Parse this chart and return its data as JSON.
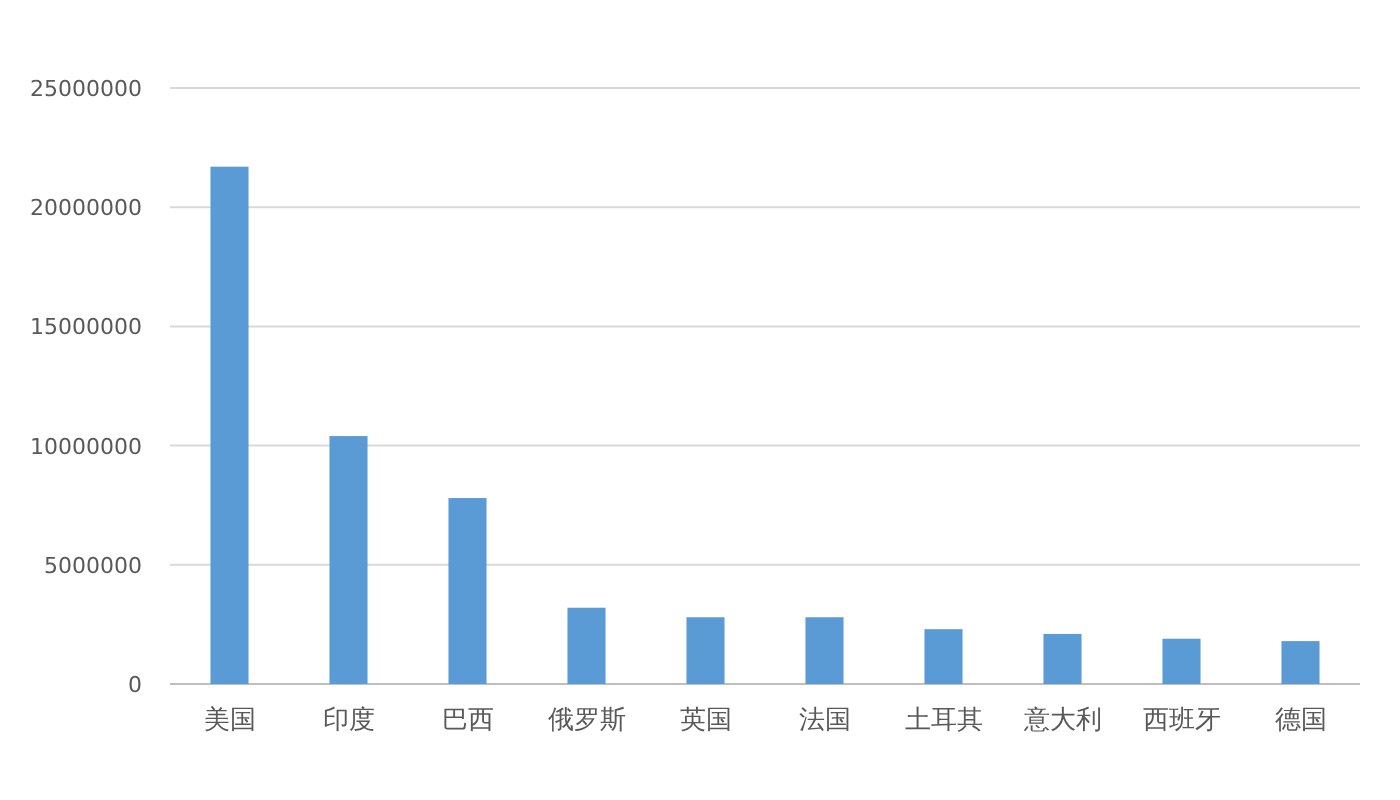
{
  "chart_data": {
    "type": "bar",
    "categories": [
      "美国",
      "印度",
      "巴西",
      "俄罗斯",
      "英国",
      "法国",
      "土耳其",
      "意大利",
      "西班牙",
      "德国"
    ],
    "values": [
      21700000,
      10400000,
      7800000,
      3200000,
      2800000,
      2800000,
      2300000,
      2100000,
      1900000,
      1800000
    ],
    "color": "#5b9bd5",
    "ylim": [
      0,
      25000000
    ],
    "yticks": [
      0,
      5000000,
      10000000,
      15000000,
      20000000,
      25000000
    ],
    "grid": "y"
  }
}
